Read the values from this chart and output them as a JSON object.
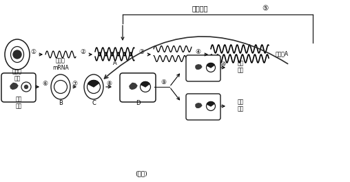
{
  "bg_color": "#f5f5f5",
  "lc": "#1a1a1a",
  "tc": "#1a1a1a",
  "title": "(图一)",
  "repeat": "重复进行",
  "step5": "⑤",
  "large_A": "大量的A",
  "cell_label": "人胰岛\n细胞",
  "mrna_label": "胰岛素\nmRNA",
  "A_label": "A",
  "ecoli_label": "大肠\n杆菌",
  "B_label": "B",
  "C_label": "C",
  "D_label": "D",
  "insulin1": "人胰\n岛素",
  "insulin2": "人胰\n岛素",
  "s1": "①",
  "s2": "②",
  "s3": "③",
  "s4": "④",
  "s6": "⑥",
  "s7": "⑦",
  "s8": "⑧",
  "s9": "⑨",
  "s10": "⑩"
}
